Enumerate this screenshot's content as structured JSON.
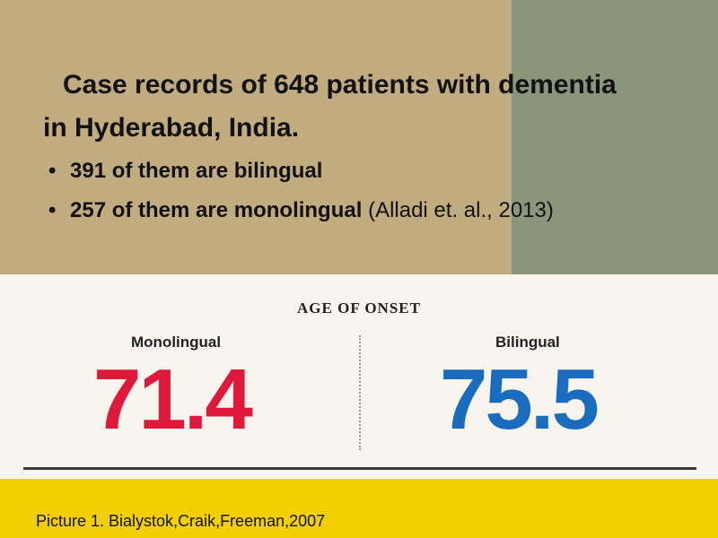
{
  "slide": {
    "line1": "Case records of 648 patients with dementia",
    "line2": "in Hyderabad, India.",
    "bullet_symbol": "•",
    "bullets": [
      {
        "text": "391 of them are bilingual",
        "citation": ""
      },
      {
        "text": "257 of them are monolingual",
        "citation": " (Alladi et. al., 2013)"
      }
    ]
  },
  "figure": {
    "title": "AGE OF ONSET",
    "monolingual": {
      "label": "Monolingual",
      "value": "71.4",
      "color": "#e0193a"
    },
    "bilingual": {
      "label": "Bilingual",
      "value": "75.5",
      "color": "#1a6cbf"
    }
  },
  "caption": "Picture 1. Bialystok,Craik,Freeman,2007",
  "colors": {
    "tan": "#c1ac80",
    "green": "#8a957b",
    "yellow": "#f2cf00"
  }
}
